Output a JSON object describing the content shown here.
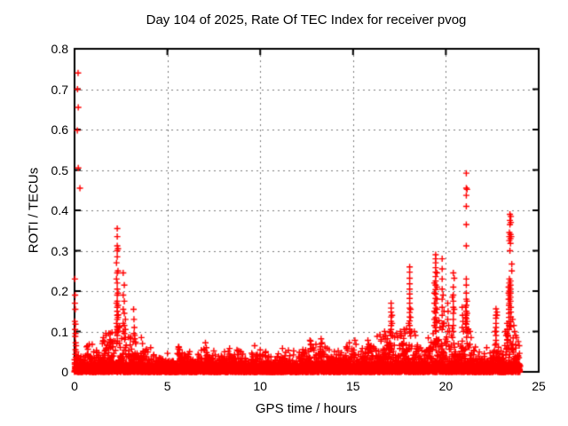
{
  "window": {
    "background": "#ffffff"
  },
  "chart_data": {
    "type": "scatter",
    "title": "Day 104 of 2025, Rate Of TEC Index for receiver pvog",
    "xlabel": "GPS time / hours",
    "ylabel": "ROTI / TECUs",
    "xlim": [
      0,
      25
    ],
    "ylim": [
      0,
      0.8
    ],
    "xticks": [
      {
        "value": 0,
        "label": "0"
      },
      {
        "value": 5,
        "label": "5"
      },
      {
        "value": 10,
        "label": "10"
      },
      {
        "value": 15,
        "label": "15"
      },
      {
        "value": 20,
        "label": "20"
      },
      {
        "value": 25,
        "label": "25"
      }
    ],
    "yticks": [
      {
        "value": 0,
        "label": "0"
      },
      {
        "value": 0.1,
        "label": "0.1"
      },
      {
        "value": 0.2,
        "label": "0.2"
      },
      {
        "value": 0.3,
        "label": "0.3"
      },
      {
        "value": 0.4,
        "label": "0.4"
      },
      {
        "value": 0.5,
        "label": "0.5"
      },
      {
        "value": 0.6,
        "label": "0.6"
      },
      {
        "value": 0.7,
        "label": "0.7"
      },
      {
        "value": 0.8,
        "label": "0.8"
      }
    ],
    "grid": true,
    "grid_color": "#7d7d7d",
    "border_color": "#000000",
    "marker": {
      "shape": "plus",
      "color": "#ff0000",
      "size": 7
    },
    "legend": null,
    "spike_points": [
      [
        0.19,
        0.74
      ],
      [
        0.16,
        0.7
      ],
      [
        0.2,
        0.655
      ],
      [
        0.15,
        0.598
      ],
      [
        0.2,
        0.505
      ],
      [
        0.29,
        0.455
      ],
      [
        0.02,
        0.23
      ],
      [
        0.03,
        0.19
      ],
      [
        0.02,
        0.17
      ],
      [
        0.04,
        0.155
      ],
      [
        0.02,
        0.125
      ],
      [
        0.05,
        0.118
      ],
      [
        0.03,
        0.105
      ],
      [
        0.05,
        0.095
      ],
      [
        0.04,
        0.088
      ],
      [
        0.06,
        0.072
      ],
      [
        0.08,
        0.065
      ],
      [
        0.65,
        0.062
      ],
      [
        0.72,
        0.056
      ],
      [
        0.95,
        0.068
      ],
      [
        1.5,
        0.07
      ],
      [
        1.55,
        0.085
      ],
      [
        1.62,
        0.075
      ],
      [
        1.7,
        0.09
      ],
      [
        1.76,
        0.066
      ],
      [
        1.85,
        0.095
      ],
      [
        1.9,
        0.08
      ],
      [
        1.95,
        0.072
      ],
      [
        2.3,
        0.355
      ],
      [
        2.3,
        0.335
      ],
      [
        2.3,
        0.312
      ],
      [
        2.34,
        0.305
      ],
      [
        2.3,
        0.3
      ],
      [
        2.3,
        0.285
      ],
      [
        2.26,
        0.27
      ],
      [
        2.34,
        0.25
      ],
      [
        2.3,
        0.245
      ],
      [
        2.26,
        0.23
      ],
      [
        2.3,
        0.22
      ],
      [
        2.3,
        0.205
      ],
      [
        2.34,
        0.195
      ],
      [
        2.3,
        0.19
      ],
      [
        2.3,
        0.175
      ],
      [
        2.26,
        0.17
      ],
      [
        2.34,
        0.165
      ],
      [
        2.3,
        0.16
      ],
      [
        2.3,
        0.15
      ],
      [
        2.3,
        0.14
      ],
      [
        2.34,
        0.135
      ],
      [
        2.3,
        0.13
      ],
      [
        2.26,
        0.12
      ],
      [
        2.3,
        0.112
      ],
      [
        2.34,
        0.11
      ],
      [
        2.3,
        0.105
      ],
      [
        2.3,
        0.098
      ],
      [
        2.3,
        0.09
      ],
      [
        2.62,
        0.245
      ],
      [
        2.68,
        0.215
      ],
      [
        2.62,
        0.19
      ],
      [
        2.68,
        0.175
      ],
      [
        2.62,
        0.155
      ],
      [
        2.68,
        0.145
      ],
      [
        2.74,
        0.13
      ],
      [
        2.62,
        0.12
      ],
      [
        2.68,
        0.115
      ],
      [
        2.74,
        0.105
      ],
      [
        2.62,
        0.1
      ],
      [
        2.68,
        0.095
      ],
      [
        2.74,
        0.085
      ],
      [
        3.18,
        0.155
      ],
      [
        3.2,
        0.13
      ],
      [
        3.22,
        0.11
      ],
      [
        3.2,
        0.095
      ],
      [
        3.24,
        0.082
      ],
      [
        3.16,
        0.075
      ],
      [
        3.6,
        0.085
      ],
      [
        3.66,
        0.07
      ],
      [
        4.1,
        0.06
      ],
      [
        5.6,
        0.062
      ],
      [
        5.66,
        0.055
      ],
      [
        6.2,
        0.05
      ],
      [
        7.05,
        0.072
      ],
      [
        7.1,
        0.06
      ],
      [
        7.5,
        0.052
      ],
      [
        8.35,
        0.058
      ],
      [
        8.8,
        0.052
      ],
      [
        9.7,
        0.065
      ],
      [
        10.3,
        0.05
      ],
      [
        11.2,
        0.058
      ],
      [
        11.8,
        0.052
      ],
      [
        12.3,
        0.055
      ],
      [
        12.68,
        0.078
      ],
      [
        12.72,
        0.068
      ],
      [
        13.0,
        0.068
      ],
      [
        13.28,
        0.082
      ],
      [
        13.33,
        0.072
      ],
      [
        13.6,
        0.058
      ],
      [
        14.2,
        0.052
      ],
      [
        14.8,
        0.072
      ],
      [
        15.1,
        0.078
      ],
      [
        15.16,
        0.068
      ],
      [
        15.5,
        0.058
      ],
      [
        15.8,
        0.078
      ],
      [
        15.85,
        0.068
      ],
      [
        16.1,
        0.062
      ],
      [
        16.3,
        0.088
      ],
      [
        16.45,
        0.092
      ],
      [
        16.52,
        0.08
      ],
      [
        16.7,
        0.1
      ],
      [
        16.76,
        0.09
      ],
      [
        16.85,
        0.082
      ],
      [
        17.05,
        0.17
      ],
      [
        17.05,
        0.158
      ],
      [
        17.05,
        0.148
      ],
      [
        17.1,
        0.14
      ],
      [
        17.05,
        0.136
      ],
      [
        17.05,
        0.125
      ],
      [
        17.1,
        0.12
      ],
      [
        17.05,
        0.115
      ],
      [
        17.05,
        0.105
      ],
      [
        17.0,
        0.1
      ],
      [
        17.05,
        0.097
      ],
      [
        17.05,
        0.09
      ],
      [
        17.35,
        0.095
      ],
      [
        17.4,
        0.085
      ],
      [
        17.55,
        0.1
      ],
      [
        17.6,
        0.09
      ],
      [
        17.75,
        0.105
      ],
      [
        17.8,
        0.095
      ],
      [
        18.05,
        0.26
      ],
      [
        18.05,
        0.247
      ],
      [
        18.05,
        0.232
      ],
      [
        18.05,
        0.218
      ],
      [
        18.05,
        0.205
      ],
      [
        18.05,
        0.193
      ],
      [
        18.05,
        0.182
      ],
      [
        18.05,
        0.17
      ],
      [
        18.1,
        0.155
      ],
      [
        18.05,
        0.158
      ],
      [
        18.05,
        0.147
      ],
      [
        18.1,
        0.135
      ],
      [
        18.05,
        0.136
      ],
      [
        18.05,
        0.126
      ],
      [
        18.0,
        0.12
      ],
      [
        18.05,
        0.115
      ],
      [
        18.05,
        0.105
      ],
      [
        18.15,
        0.1
      ],
      [
        18.05,
        0.096
      ],
      [
        18.3,
        0.1
      ],
      [
        18.36,
        0.09
      ],
      [
        19.45,
        0.29
      ],
      [
        19.45,
        0.28
      ],
      [
        19.45,
        0.27
      ],
      [
        19.45,
        0.258
      ],
      [
        19.52,
        0.245
      ],
      [
        19.45,
        0.247
      ],
      [
        19.45,
        0.236
      ],
      [
        19.45,
        0.225
      ],
      [
        19.38,
        0.22
      ],
      [
        19.45,
        0.215
      ],
      [
        19.52,
        0.21
      ],
      [
        19.45,
        0.204
      ],
      [
        19.38,
        0.195
      ],
      [
        19.45,
        0.193
      ],
      [
        19.52,
        0.18
      ],
      [
        19.45,
        0.182
      ],
      [
        19.38,
        0.17
      ],
      [
        19.45,
        0.17
      ],
      [
        19.45,
        0.158
      ],
      [
        19.52,
        0.155
      ],
      [
        19.38,
        0.15
      ],
      [
        19.45,
        0.146
      ],
      [
        19.45,
        0.134
      ],
      [
        19.38,
        0.13
      ],
      [
        19.52,
        0.125
      ],
      [
        19.45,
        0.122
      ],
      [
        19.38,
        0.115
      ],
      [
        19.45,
        0.11
      ],
      [
        19.45,
        0.1
      ],
      [
        19.8,
        0.28
      ],
      [
        19.8,
        0.255
      ],
      [
        19.8,
        0.23
      ],
      [
        19.8,
        0.205
      ],
      [
        19.85,
        0.19
      ],
      [
        19.8,
        0.18
      ],
      [
        19.8,
        0.16
      ],
      [
        19.9,
        0.15
      ],
      [
        19.8,
        0.14
      ],
      [
        19.9,
        0.12
      ],
      [
        19.8,
        0.12
      ],
      [
        19.8,
        0.105
      ],
      [
        20.1,
        0.17
      ],
      [
        20.12,
        0.15
      ],
      [
        20.1,
        0.13
      ],
      [
        20.15,
        0.115
      ],
      [
        20.1,
        0.1
      ],
      [
        20.4,
        0.245
      ],
      [
        20.45,
        0.232
      ],
      [
        20.4,
        0.21
      ],
      [
        20.35,
        0.185
      ],
      [
        20.4,
        0.19
      ],
      [
        20.4,
        0.175
      ],
      [
        20.4,
        0.16
      ],
      [
        20.45,
        0.155
      ],
      [
        20.4,
        0.145
      ],
      [
        20.4,
        0.13
      ],
      [
        20.4,
        0.115
      ],
      [
        20.4,
        0.1
      ],
      [
        20.88,
        0.16
      ],
      [
        20.9,
        0.14
      ],
      [
        20.92,
        0.125
      ],
      [
        20.88,
        0.11
      ],
      [
        20.95,
        0.1
      ],
      [
        21.1,
        0.492
      ],
      [
        21.1,
        0.455
      ],
      [
        21.14,
        0.452
      ],
      [
        21.1,
        0.437
      ],
      [
        21.1,
        0.41
      ],
      [
        21.1,
        0.365
      ],
      [
        21.1,
        0.312
      ],
      [
        21.1,
        0.23
      ],
      [
        21.1,
        0.215
      ],
      [
        21.1,
        0.195
      ],
      [
        21.1,
        0.18
      ],
      [
        21.14,
        0.175
      ],
      [
        21.1,
        0.165
      ],
      [
        21.06,
        0.16
      ],
      [
        21.1,
        0.15
      ],
      [
        21.14,
        0.145
      ],
      [
        21.1,
        0.14
      ],
      [
        21.06,
        0.135
      ],
      [
        21.1,
        0.132
      ],
      [
        21.14,
        0.125
      ],
      [
        21.1,
        0.118
      ],
      [
        21.06,
        0.12
      ],
      [
        21.1,
        0.11
      ],
      [
        21.3,
        0.1
      ],
      [
        21.36,
        0.085
      ],
      [
        22.2,
        0.06
      ],
      [
        22.7,
        0.156
      ],
      [
        22.75,
        0.148
      ],
      [
        22.7,
        0.14
      ],
      [
        22.75,
        0.14
      ],
      [
        22.7,
        0.133
      ],
      [
        22.7,
        0.12
      ],
      [
        22.7,
        0.11
      ],
      [
        22.65,
        0.1
      ],
      [
        22.7,
        0.1
      ],
      [
        22.7,
        0.09
      ],
      [
        22.7,
        0.078
      ],
      [
        22.7,
        0.07
      ],
      [
        23.45,
        0.39
      ],
      [
        23.5,
        0.385
      ],
      [
        23.45,
        0.375
      ],
      [
        23.5,
        0.37
      ],
      [
        23.45,
        0.365
      ],
      [
        23.42,
        0.345
      ],
      [
        23.48,
        0.34
      ],
      [
        23.42,
        0.335
      ],
      [
        23.52,
        0.335
      ],
      [
        23.48,
        0.33
      ],
      [
        23.42,
        0.325
      ],
      [
        23.48,
        0.318
      ],
      [
        23.45,
        0.3
      ],
      [
        23.55,
        0.267
      ],
      [
        23.55,
        0.25
      ],
      [
        23.42,
        0.23
      ],
      [
        23.48,
        0.225
      ],
      [
        23.42,
        0.22
      ],
      [
        23.48,
        0.215
      ],
      [
        23.42,
        0.21
      ],
      [
        23.38,
        0.21
      ],
      [
        23.48,
        0.205
      ],
      [
        23.42,
        0.2
      ],
      [
        23.38,
        0.195
      ],
      [
        23.48,
        0.195
      ],
      [
        23.42,
        0.19
      ],
      [
        23.48,
        0.185
      ],
      [
        23.42,
        0.18
      ],
      [
        23.38,
        0.18
      ],
      [
        23.48,
        0.175
      ],
      [
        23.42,
        0.17
      ],
      [
        23.4,
        0.165
      ],
      [
        23.4,
        0.155
      ],
      [
        23.5,
        0.16
      ],
      [
        23.4,
        0.145
      ],
      [
        23.5,
        0.148
      ],
      [
        23.4,
        0.135
      ],
      [
        23.5,
        0.136
      ],
      [
        23.4,
        0.125
      ],
      [
        23.5,
        0.124
      ],
      [
        23.4,
        0.115
      ],
      [
        23.5,
        0.112
      ],
      [
        23.4,
        0.105
      ],
      [
        23.3,
        0.12
      ],
      [
        23.3,
        0.105
      ],
      [
        23.3,
        0.095
      ],
      [
        23.2,
        0.1
      ],
      [
        23.25,
        0.09
      ],
      [
        23.6,
        0.13
      ],
      [
        23.66,
        0.115
      ],
      [
        23.7,
        0.1
      ],
      [
        23.76,
        0.09
      ],
      [
        23.8,
        0.085
      ],
      [
        23.9,
        0.075
      ],
      [
        23.95,
        0.065
      ]
    ],
    "baseline_noise": {
      "x_range": [
        0,
        24
      ],
      "step": 0.015,
      "seed": 104,
      "floor_band": 0.02,
      "envelope": [
        [
          0,
          0.055
        ],
        [
          0.4,
          0.06
        ],
        [
          0.7,
          0.075
        ],
        [
          1.0,
          0.055
        ],
        [
          1.4,
          0.09
        ],
        [
          1.8,
          0.1
        ],
        [
          2.1,
          0.13
        ],
        [
          2.35,
          0.145
        ],
        [
          2.6,
          0.12
        ],
        [
          2.8,
          0.08
        ],
        [
          3.1,
          0.1
        ],
        [
          3.3,
          0.09
        ],
        [
          3.6,
          0.075
        ],
        [
          3.9,
          0.06
        ],
        [
          4.3,
          0.05
        ],
        [
          4.7,
          0.042
        ],
        [
          5.2,
          0.055
        ],
        [
          5.6,
          0.068
        ],
        [
          6.0,
          0.05
        ],
        [
          6.5,
          0.045
        ],
        [
          7.0,
          0.075
        ],
        [
          7.3,
          0.05
        ],
        [
          7.8,
          0.045
        ],
        [
          8.3,
          0.06
        ],
        [
          8.8,
          0.055
        ],
        [
          9.3,
          0.045
        ],
        [
          9.7,
          0.068
        ],
        [
          10.2,
          0.05
        ],
        [
          10.7,
          0.045
        ],
        [
          11.2,
          0.06
        ],
        [
          11.7,
          0.05
        ],
        [
          12.2,
          0.055
        ],
        [
          12.7,
          0.08
        ],
        [
          13.0,
          0.07
        ],
        [
          13.3,
          0.085
        ],
        [
          13.7,
          0.06
        ],
        [
          14.2,
          0.05
        ],
        [
          14.8,
          0.075
        ],
        [
          15.1,
          0.08
        ],
        [
          15.5,
          0.06
        ],
        [
          15.8,
          0.08
        ],
        [
          16.1,
          0.065
        ],
        [
          16.4,
          0.09
        ],
        [
          16.7,
          0.1
        ],
        [
          17.0,
          0.12
        ],
        [
          17.2,
          0.09
        ],
        [
          17.5,
          0.095
        ],
        [
          17.8,
          0.1
        ],
        [
          18.0,
          0.13
        ],
        [
          18.2,
          0.09
        ],
        [
          18.5,
          0.065
        ],
        [
          18.9,
          0.07
        ],
        [
          19.2,
          0.1
        ],
        [
          19.5,
          0.14
        ],
        [
          19.8,
          0.12
        ],
        [
          20.1,
          0.12
        ],
        [
          20.4,
          0.11
        ],
        [
          20.7,
          0.08
        ],
        [
          20.9,
          0.1
        ],
        [
          21.1,
          0.15
        ],
        [
          21.3,
          0.1
        ],
        [
          21.6,
          0.06
        ],
        [
          22.0,
          0.05
        ],
        [
          22.3,
          0.045
        ],
        [
          22.7,
          0.09
        ],
        [
          23.0,
          0.06
        ],
        [
          23.3,
          0.1
        ],
        [
          23.5,
          0.13
        ],
        [
          23.8,
          0.09
        ],
        [
          24.0,
          0.065
        ]
      ]
    }
  }
}
